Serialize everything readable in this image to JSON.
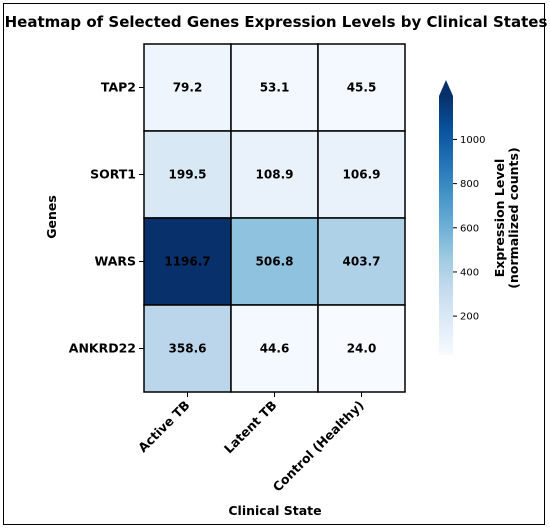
{
  "chart_data": {
    "type": "heatmap",
    "title": "Heatmap of Selected Genes Expression Levels by Clinical States",
    "xlabel": "Clinical State",
    "ylabel": "Genes",
    "rows": [
      "TAP2",
      "SORT1",
      "WARS",
      "ANKRD22"
    ],
    "columns": [
      "Active TB",
      "Latent TB",
      "Control (Healthy)"
    ],
    "values": [
      [
        79.2,
        53.1,
        45.5
      ],
      [
        199.5,
        108.9,
        106.9
      ],
      [
        1196.7,
        506.8,
        403.7
      ],
      [
        358.6,
        44.6,
        24.0
      ]
    ],
    "value_labels": [
      [
        "79.2",
        "53.1",
        "45.5"
      ],
      [
        "199.5",
        "108.9",
        "106.9"
      ],
      [
        "1196.7",
        "506.8",
        "403.7"
      ],
      [
        "358.6",
        "44.6",
        "24.0"
      ]
    ],
    "colorbar": {
      "label_line1": "Expression Level",
      "label_line2": "(normalized counts)",
      "range": [
        24.0,
        1196.7
      ],
      "ticks": [
        200,
        400,
        600,
        800,
        1000
      ],
      "tick_labels": [
        "200",
        "400",
        "600",
        "800",
        "1000"
      ],
      "extend": "max",
      "colormap": "Blues"
    },
    "grid": true
  }
}
